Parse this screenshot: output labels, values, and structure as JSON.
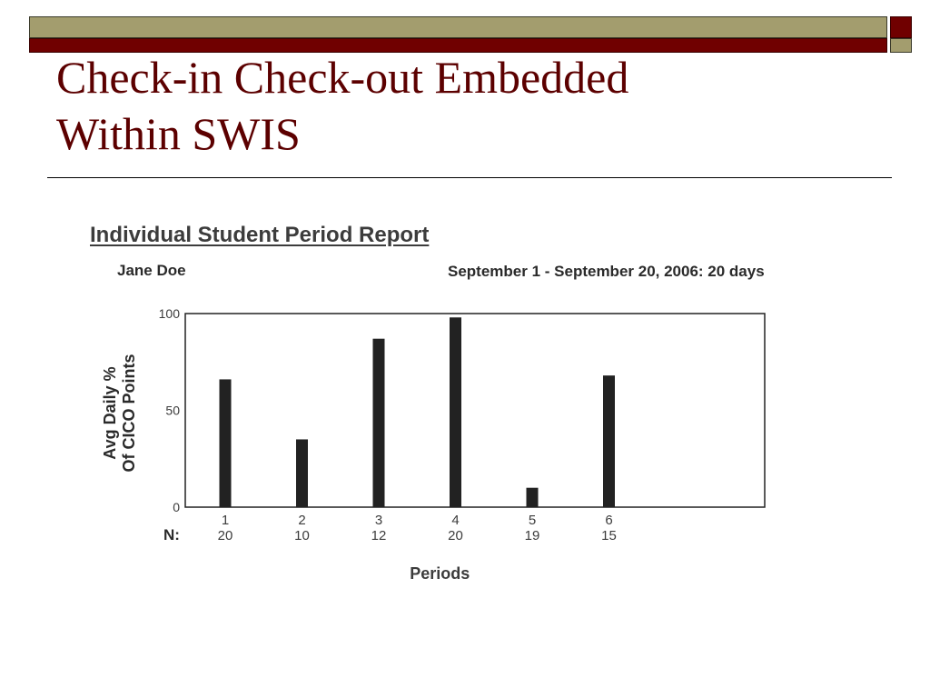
{
  "slide": {
    "title_line1": "Check-in Check-out Embedded",
    "title_line2": "Within SWIS"
  },
  "report": {
    "title": "Individual Student Period Report",
    "student": "Jane Doe",
    "date_range": "September 1 - September 20, 2006: 20 days"
  },
  "colors": {
    "title": "#5c0000",
    "header_olive": "#a39d6e",
    "header_maroon": "#700000",
    "bars": "#222222"
  },
  "chart_data": {
    "type": "bar",
    "title": "Individual Student Period Report",
    "xlabel": "Periods",
    "ylabel_line1": "Avg Daily %",
    "ylabel_line2": "Of CICO Points",
    "n_label": "N:",
    "categories": [
      "1",
      "2",
      "3",
      "4",
      "5",
      "6"
    ],
    "x_positions": [
      1,
      2,
      3,
      4,
      5,
      6
    ],
    "values": [
      66,
      35,
      87,
      98,
      10,
      68
    ],
    "n_values": [
      "20",
      "10",
      "12",
      "20",
      "19",
      "15"
    ],
    "yticks": [
      0,
      50,
      100
    ],
    "ylim": [
      0,
      100
    ],
    "grid": false
  }
}
